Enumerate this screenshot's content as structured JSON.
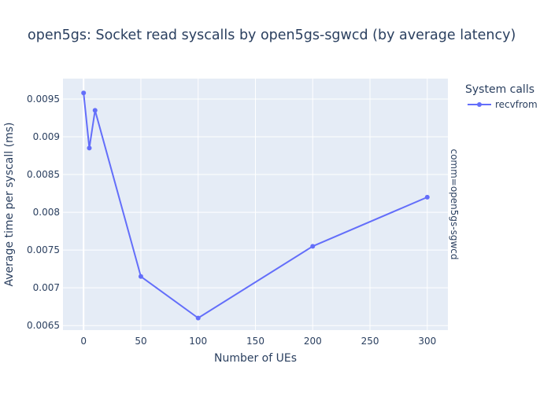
{
  "chart_data": {
    "type": "line",
    "title": "open5gs: Socket read syscalls by open5gs-sgwcd (by average latency)",
    "xlabel": "Number of UEs",
    "ylabel": "Average time per syscall (ms)",
    "xlim": [
      -18,
      318
    ],
    "ylim": [
      0.00644,
      0.00977
    ],
    "xticks": [
      0,
      50,
      100,
      150,
      200,
      250,
      300
    ],
    "xtick_labels": [
      "0",
      "50",
      "100",
      "150",
      "200",
      "250",
      "300"
    ],
    "yticks": [
      0.0065,
      0.007,
      0.0075,
      0.008,
      0.0085,
      0.009,
      0.0095
    ],
    "ytick_labels": [
      "0.0065",
      "0.007",
      "0.0075",
      "0.008",
      "0.0085",
      "0.009",
      "0.0095"
    ],
    "grid": true,
    "legend": {
      "title": "System calls",
      "position": "top-right"
    },
    "facet_label": "comm=open5gs-sgwcd",
    "colors": {
      "plot_bg": "#E5ECF6",
      "grid": "#ffffff",
      "series": "#636EFA",
      "text": "#2a3f5f"
    },
    "series": [
      {
        "name": "recvfrom",
        "x": [
          0,
          5,
          10,
          50,
          100,
          200,
          300
        ],
        "y": [
          0.00958,
          0.00885,
          0.00935,
          0.00715,
          0.0066,
          0.00755,
          0.0082
        ]
      }
    ]
  }
}
